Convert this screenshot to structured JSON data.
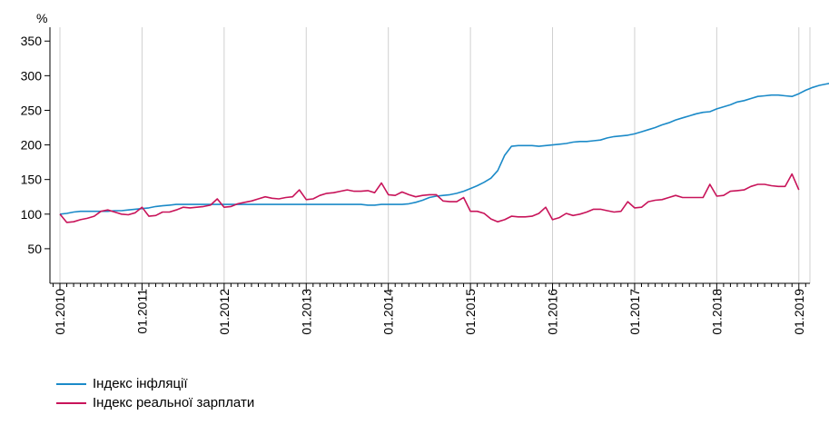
{
  "chart_data": {
    "type": "line",
    "ylabel": "%",
    "ylim": [
      0,
      370
    ],
    "yticks": [
      50,
      100,
      150,
      200,
      250,
      300,
      350
    ],
    "xticks": [
      "01.2010",
      "01.2011",
      "01.2012",
      "01.2013",
      "01.2014",
      "01.2015",
      "01.2016",
      "01.2017",
      "01.2018",
      "01.2019"
    ],
    "x_range": [
      "01.2010",
      "02.2019"
    ],
    "grid": "vertical",
    "legend_position": "bottom-left",
    "series": [
      {
        "name": "Індекс інфляції",
        "color": "#1b8ac8",
        "points": [
          [
            0,
            100
          ],
          [
            1,
            101
          ],
          [
            2,
            103
          ],
          [
            3,
            104
          ],
          [
            4,
            104
          ],
          [
            5,
            104
          ],
          [
            6,
            104
          ],
          [
            7,
            104
          ],
          [
            8,
            105
          ],
          [
            9,
            105
          ],
          [
            10,
            106
          ],
          [
            11,
            107
          ],
          [
            12,
            108
          ],
          [
            13,
            109
          ],
          [
            14,
            111
          ],
          [
            15,
            112
          ],
          [
            16,
            113
          ],
          [
            17,
            114
          ],
          [
            18,
            114
          ],
          [
            19,
            114
          ],
          [
            20,
            114
          ],
          [
            21,
            114
          ],
          [
            22,
            114
          ],
          [
            23,
            114
          ],
          [
            24,
            114
          ],
          [
            25,
            114
          ],
          [
            26,
            114
          ],
          [
            27,
            114
          ],
          [
            28,
            114
          ],
          [
            29,
            114
          ],
          [
            30,
            114
          ],
          [
            31,
            114
          ],
          [
            32,
            114
          ],
          [
            33,
            114
          ],
          [
            34,
            114
          ],
          [
            35,
            114
          ],
          [
            36,
            114
          ],
          [
            37,
            114
          ],
          [
            38,
            114
          ],
          [
            39,
            114
          ],
          [
            40,
            114
          ],
          [
            41,
            114
          ],
          [
            42,
            114
          ],
          [
            43,
            114
          ],
          [
            44,
            114
          ],
          [
            45,
            113
          ],
          [
            46,
            113
          ],
          [
            47,
            114
          ],
          [
            48,
            114
          ],
          [
            49,
            114
          ],
          [
            50,
            114
          ],
          [
            51,
            115
          ],
          [
            52,
            117
          ],
          [
            53,
            120
          ],
          [
            54,
            124
          ],
          [
            55,
            126
          ],
          [
            56,
            127
          ],
          [
            57,
            128
          ],
          [
            58,
            130
          ],
          [
            59,
            133
          ],
          [
            60,
            137
          ],
          [
            61,
            141
          ],
          [
            62,
            146
          ],
          [
            63,
            152
          ],
          [
            64,
            163
          ],
          [
            65,
            185
          ],
          [
            66,
            198
          ],
          [
            67,
            199
          ],
          [
            68,
            199
          ],
          [
            69,
            199
          ],
          [
            70,
            198
          ],
          [
            71,
            199
          ],
          [
            72,
            200
          ],
          [
            73,
            201
          ],
          [
            74,
            202
          ],
          [
            75,
            204
          ],
          [
            76,
            205
          ],
          [
            77,
            205
          ],
          [
            78,
            206
          ],
          [
            79,
            207
          ],
          [
            80,
            210
          ],
          [
            81,
            212
          ],
          [
            82,
            213
          ],
          [
            83,
            214
          ],
          [
            84,
            216
          ],
          [
            85,
            219
          ],
          [
            86,
            222
          ],
          [
            87,
            225
          ],
          [
            88,
            229
          ],
          [
            89,
            232
          ],
          [
            90,
            236
          ],
          [
            91,
            239
          ],
          [
            92,
            242
          ],
          [
            93,
            245
          ],
          [
            94,
            247
          ],
          [
            95,
            248
          ],
          [
            96,
            252
          ],
          [
            97,
            255
          ],
          [
            98,
            258
          ],
          [
            99,
            262
          ],
          [
            100,
            264
          ],
          [
            101,
            267
          ],
          [
            102,
            270
          ],
          [
            103,
            271
          ],
          [
            104,
            272
          ],
          [
            105,
            272
          ],
          [
            106,
            271
          ],
          [
            107,
            270
          ],
          [
            108,
            274
          ],
          [
            109,
            279
          ],
          [
            110,
            283
          ],
          [
            111,
            286
          ],
          [
            112,
            288
          ],
          [
            113,
            290
          ],
          [
            114,
            291
          ]
        ]
      },
      {
        "name": "Індекс реальної зарплати",
        "color": "#c8145a",
        "points": [
          [
            0,
            100
          ],
          [
            1,
            88
          ],
          [
            2,
            89
          ],
          [
            3,
            92
          ],
          [
            4,
            94
          ],
          [
            5,
            97
          ],
          [
            6,
            104
          ],
          [
            7,
            106
          ],
          [
            8,
            103
          ],
          [
            9,
            100
          ],
          [
            10,
            99
          ],
          [
            11,
            102
          ],
          [
            12,
            110
          ],
          [
            13,
            97
          ],
          [
            14,
            98
          ],
          [
            15,
            103
          ],
          [
            16,
            103
          ],
          [
            17,
            106
          ],
          [
            18,
            110
          ],
          [
            19,
            109
          ],
          [
            20,
            110
          ],
          [
            21,
            111
          ],
          [
            22,
            113
          ],
          [
            23,
            122
          ],
          [
            24,
            110
          ],
          [
            25,
            111
          ],
          [
            26,
            115
          ],
          [
            27,
            117
          ],
          [
            28,
            119
          ],
          [
            29,
            122
          ],
          [
            30,
            125
          ],
          [
            31,
            123
          ],
          [
            32,
            122
          ],
          [
            33,
            124
          ],
          [
            34,
            125
          ],
          [
            35,
            135
          ],
          [
            36,
            121
          ],
          [
            37,
            122
          ],
          [
            38,
            127
          ],
          [
            39,
            130
          ],
          [
            40,
            131
          ],
          [
            41,
            133
          ],
          [
            42,
            135
          ],
          [
            43,
            133
          ],
          [
            44,
            133
          ],
          [
            45,
            134
          ],
          [
            46,
            131
          ],
          [
            47,
            145
          ],
          [
            48,
            128
          ],
          [
            49,
            127
          ],
          [
            50,
            132
          ],
          [
            51,
            128
          ],
          [
            52,
            125
          ],
          [
            53,
            127
          ],
          [
            54,
            128
          ],
          [
            55,
            128
          ],
          [
            56,
            119
          ],
          [
            57,
            118
          ],
          [
            58,
            118
          ],
          [
            59,
            124
          ],
          [
            60,
            104
          ],
          [
            61,
            104
          ],
          [
            62,
            101
          ],
          [
            63,
            93
          ],
          [
            64,
            89
          ],
          [
            65,
            92
          ],
          [
            66,
            97
          ],
          [
            67,
            96
          ],
          [
            68,
            96
          ],
          [
            69,
            97
          ],
          [
            70,
            101
          ],
          [
            71,
            110
          ],
          [
            72,
            92
          ],
          [
            73,
            95
          ],
          [
            74,
            101
          ],
          [
            75,
            98
          ],
          [
            76,
            100
          ],
          [
            77,
            103
          ],
          [
            78,
            107
          ],
          [
            79,
            107
          ],
          [
            80,
            105
          ],
          [
            81,
            103
          ],
          [
            82,
            104
          ],
          [
            83,
            118
          ],
          [
            84,
            109
          ],
          [
            85,
            110
          ],
          [
            86,
            118
          ],
          [
            87,
            120
          ],
          [
            88,
            121
          ],
          [
            89,
            124
          ],
          [
            90,
            127
          ],
          [
            91,
            124
          ],
          [
            92,
            124
          ],
          [
            93,
            124
          ],
          [
            94,
            124
          ],
          [
            95,
            143
          ],
          [
            96,
            126
          ],
          [
            97,
            127
          ],
          [
            98,
            133
          ],
          [
            99,
            134
          ],
          [
            100,
            135
          ],
          [
            101,
            140
          ],
          [
            102,
            143
          ],
          [
            103,
            143
          ],
          [
            104,
            141
          ],
          [
            105,
            140
          ],
          [
            106,
            140
          ],
          [
            107,
            158
          ],
          [
            108,
            135
          ]
        ]
      }
    ]
  }
}
